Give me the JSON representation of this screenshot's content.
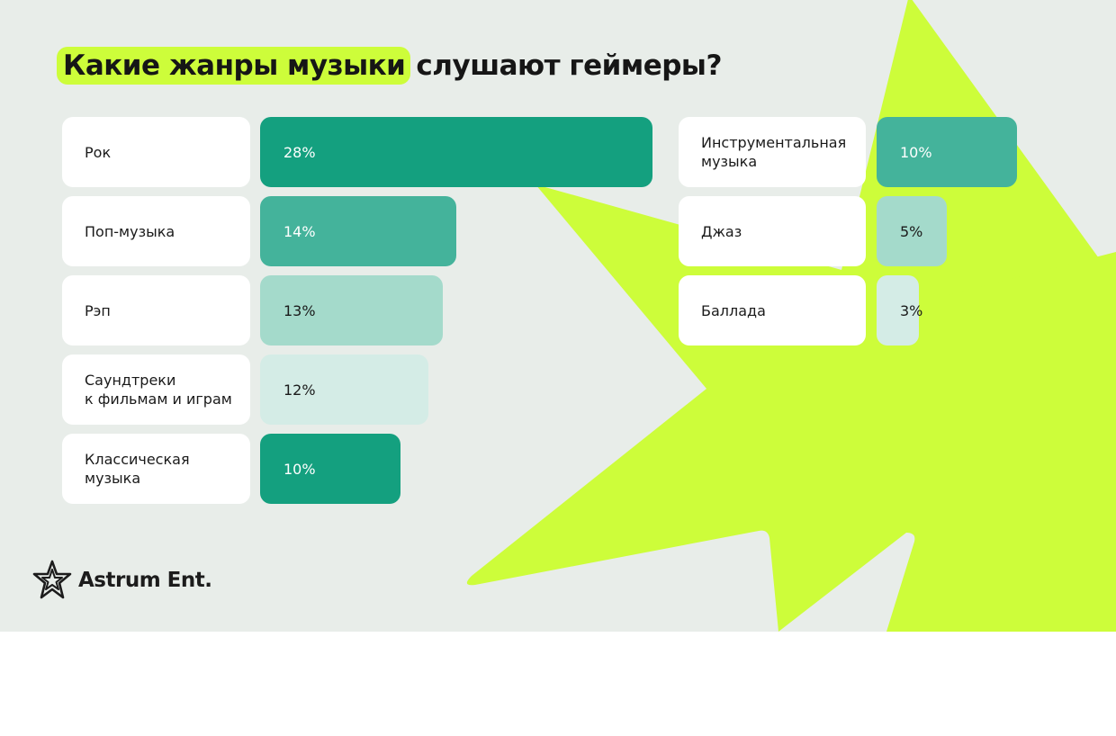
{
  "title": {
    "highlight": "Какие жанры музыки",
    "rest": "слушают геймеры?"
  },
  "colors": {
    "background": "#e8ede9",
    "accent": "#cdfd3a",
    "bar_dark": "#14a07f",
    "bar_mid": "#44b39b",
    "bar_light": "#a4dacb",
    "bar_pale": "#d4ece6"
  },
  "chart_data": {
    "type": "bar",
    "orientation": "horizontal",
    "unit": "%",
    "categories": [
      "Рок",
      "Поп-музыка",
      "Рэп",
      "Саундтреки\nк фильмам и играм",
      "Классическая\nмузыка",
      "Инструментальная\nмузыка",
      "Джаз",
      "Баллада"
    ],
    "values": [
      28,
      14,
      13,
      12,
      10,
      10,
      5,
      3
    ],
    "value_labels": [
      "28%",
      "14%",
      "13%",
      "12%",
      "10%",
      "10%",
      "5%",
      "3%"
    ],
    "bar_colors": [
      "#14a07f",
      "#44b39b",
      "#a4dacb",
      "#d4ece6",
      "#14a07f",
      "#44b39b",
      "#a4dacb",
      "#d4ece6"
    ],
    "label_colors": [
      "#ffffff",
      "#ffffff",
      "#1a1a1a",
      "#1a1a1a",
      "#ffffff",
      "#ffffff",
      "#1a1a1a",
      "#1a1a1a"
    ]
  },
  "logo": {
    "text": "Astrum Ent.",
    "icon": "star-icon"
  }
}
